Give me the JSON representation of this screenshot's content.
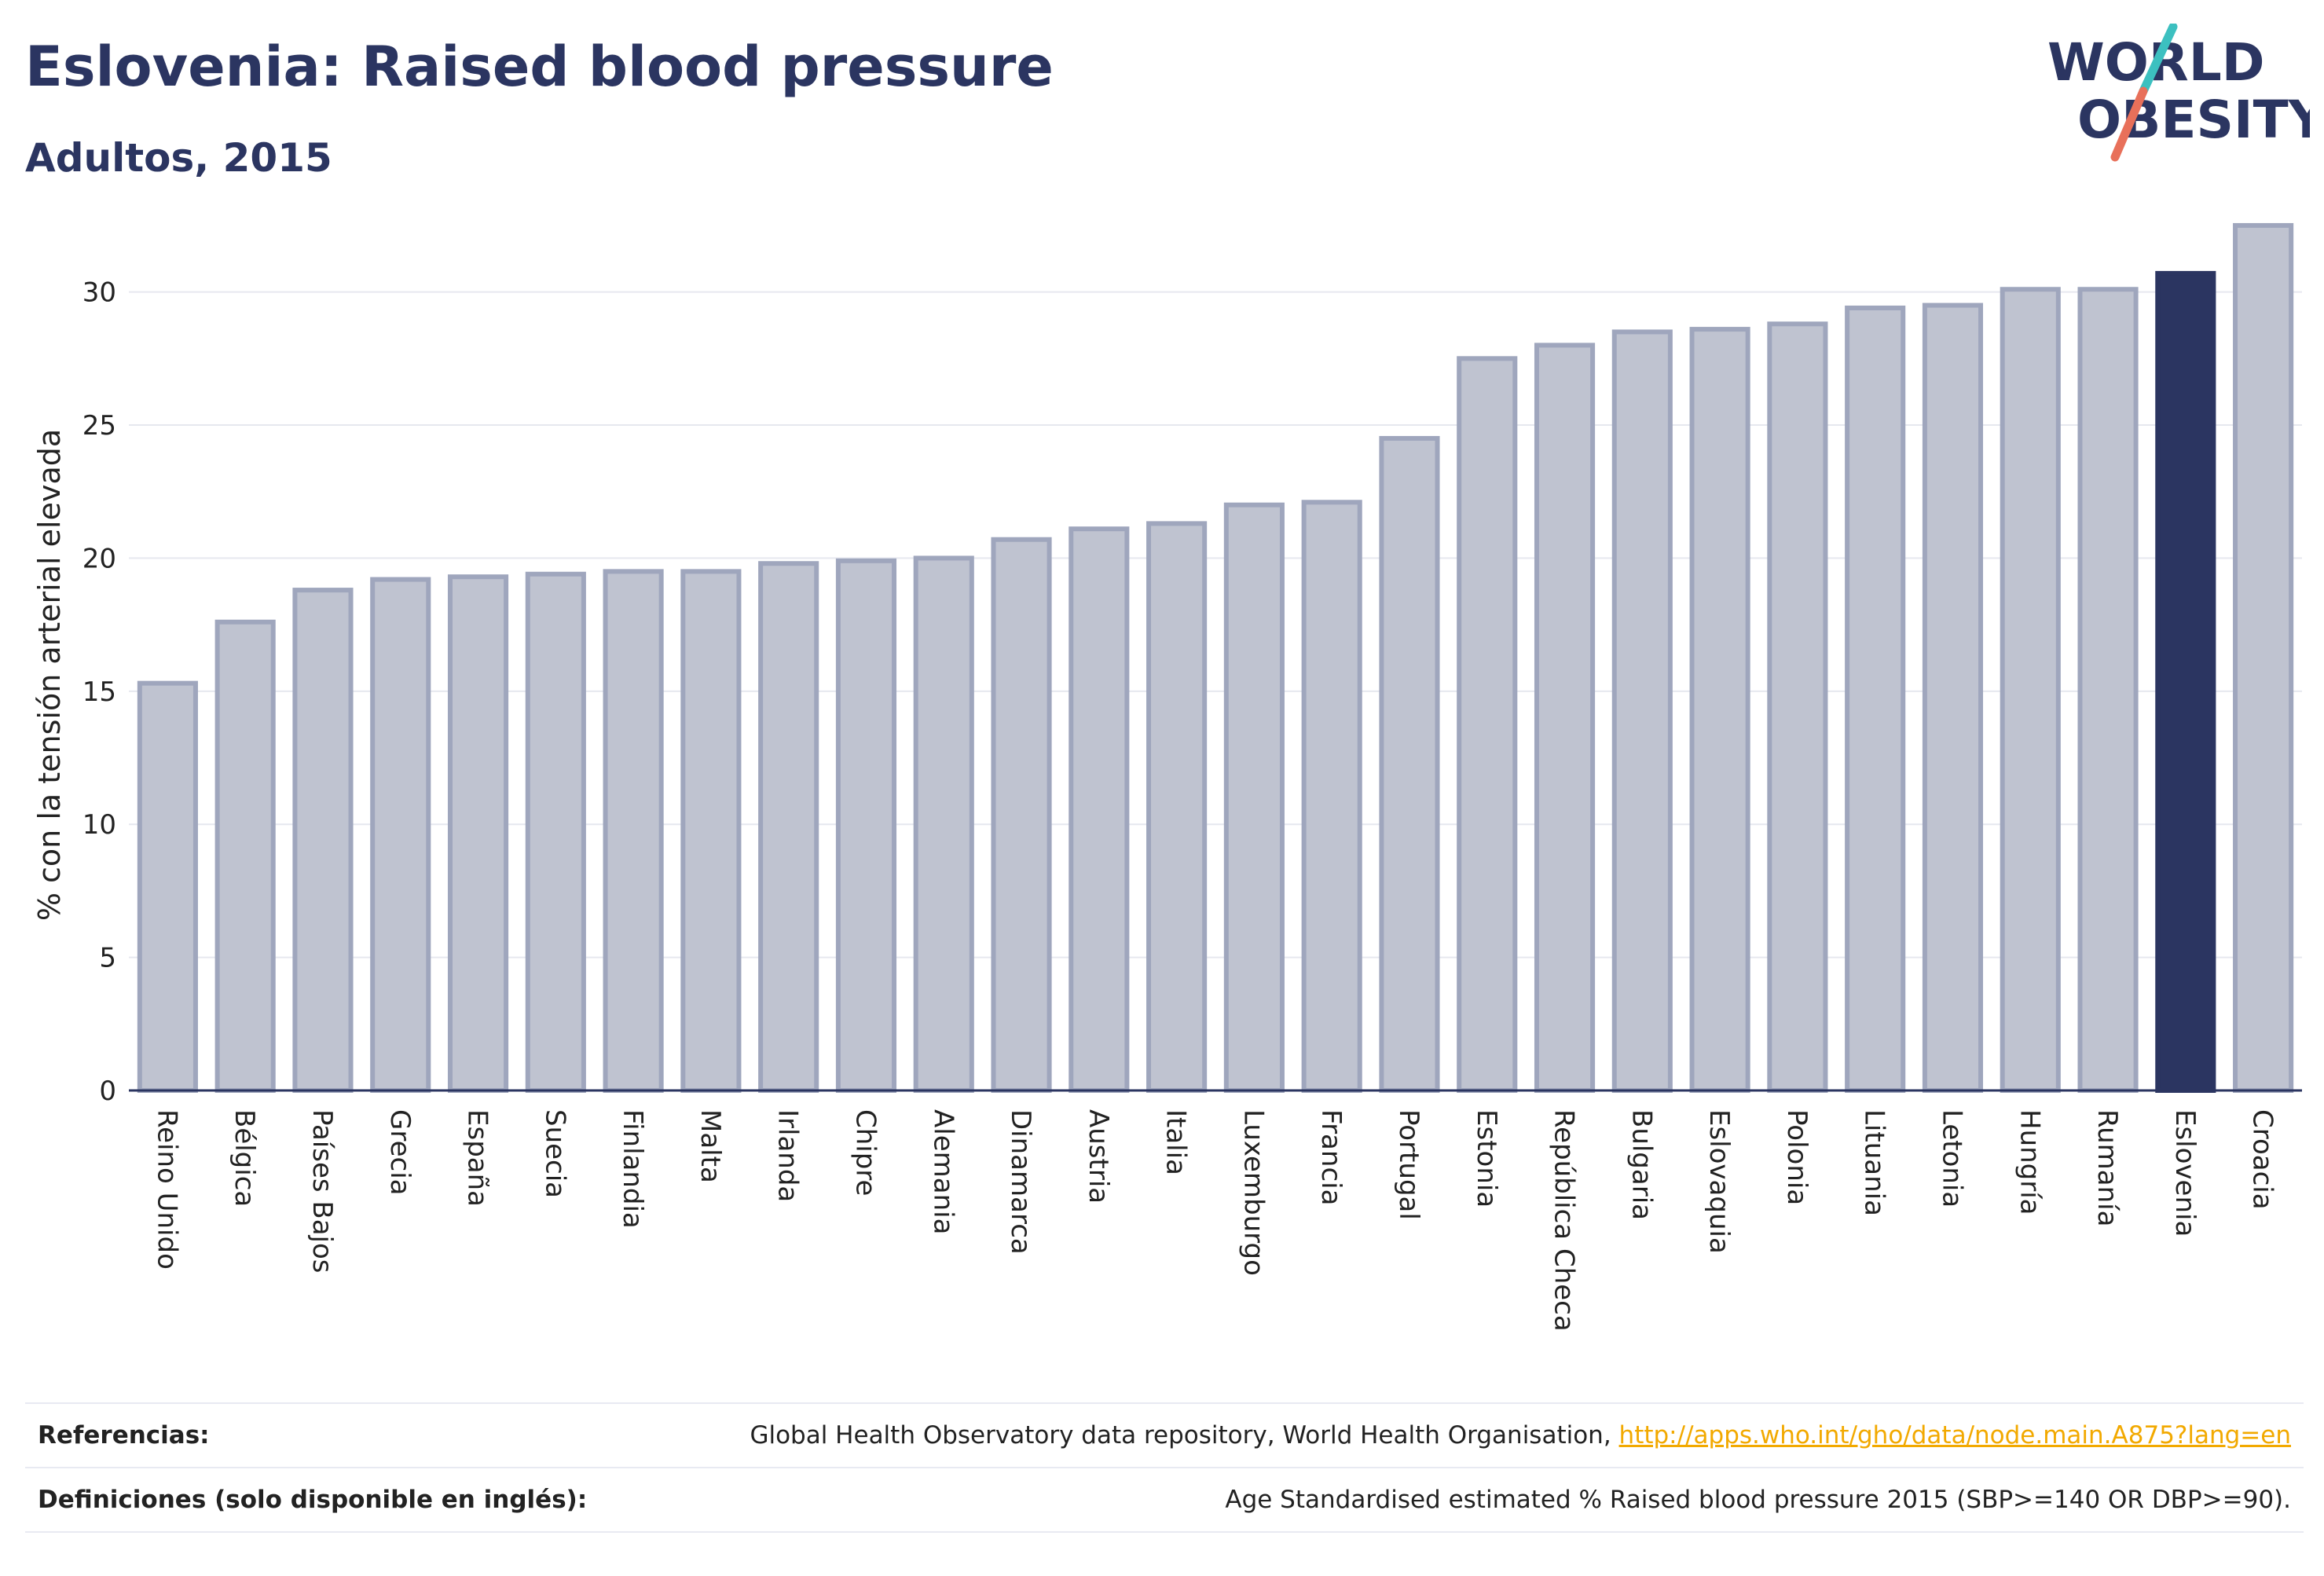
{
  "header": {
    "title": "Eslovenia: Raised blood pressure",
    "subtitle": "Adultos, 2015"
  },
  "logo": {
    "line1": "WORLD",
    "line2": "OBESITY"
  },
  "colors": {
    "bar_fill": "#bfc3d0",
    "bar_stroke": "#9fa6bd",
    "highlight": "#2b3561",
    "axis": "#2b3561",
    "grid": "#e6e8ef",
    "logo_teal": "#3cc0c0",
    "logo_coral": "#e8705a",
    "link": "#f2a900"
  },
  "chart_data": {
    "type": "bar",
    "title": "Eslovenia: Raised blood pressure",
    "subtitle": "Adultos, 2015",
    "xlabel": "",
    "ylabel": "% con la tensión arterial elevada",
    "ylim": [
      0,
      33
    ],
    "yticks": [
      0,
      5,
      10,
      15,
      20,
      25,
      30
    ],
    "grid": true,
    "highlight_category": "Eslovenia",
    "categories": [
      "Reino Unido",
      "Bélgica",
      "Países Bajos",
      "Grecia",
      "España",
      "Suecia",
      "Finlandia",
      "Malta",
      "Irlanda",
      "Chipre",
      "Alemania",
      "Dinamarca",
      "Austria",
      "Italia",
      "Luxemburgo",
      "Francia",
      "Portugal",
      "Estonia",
      "República Checa",
      "Bulgaria",
      "Eslovaquia",
      "Polonia",
      "Lituania",
      "Letonia",
      "Hungría",
      "Rumanía",
      "Eslovenia",
      "Croacia"
    ],
    "values": [
      15.3,
      17.6,
      18.8,
      19.2,
      19.3,
      19.4,
      19.5,
      19.5,
      19.8,
      19.9,
      20.0,
      20.7,
      21.1,
      21.3,
      22.0,
      22.1,
      24.5,
      27.5,
      28.0,
      28.5,
      28.6,
      28.8,
      29.4,
      29.5,
      30.1,
      30.1,
      30.7,
      32.5
    ]
  },
  "footer": {
    "references_label": "Referencias:",
    "references_text": "Global Health Observatory data repository, World Health Organisation,",
    "references_link": "http://apps.who.int/gho/data/node.main.A875?lang=en",
    "definitions_label": "Definiciones (solo disponible en inglés):",
    "definitions_text": "Age Standardised estimated % Raised blood pressure 2015 (SBP>=140 OR DBP>=90)."
  }
}
